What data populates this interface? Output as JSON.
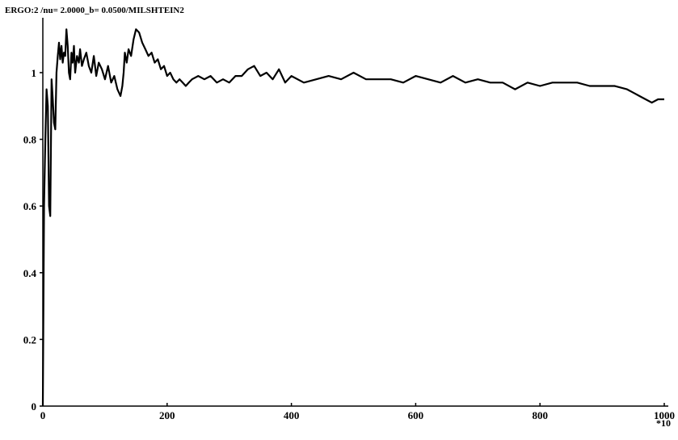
{
  "chart_data": {
    "type": "line",
    "title": "ERGO:2 /nu= 2.0000_b= 0.0500/MILSHTEIN2",
    "xlabel": "",
    "ylabel": "",
    "x_unit_label": "*10",
    "xlim": [
      0,
      1000
    ],
    "ylim": [
      0,
      1.15
    ],
    "x_ticks": [
      "0",
      "200",
      "400",
      "600",
      "800",
      "1000"
    ],
    "y_ticks": [
      "0",
      "0.2",
      "0.4",
      "0.6",
      "0.8",
      "1"
    ],
    "grid": false,
    "line_color": "#000000",
    "series": [
      {
        "x": [
          0,
          2,
          4,
          6,
          8,
          10,
          12,
          14,
          16,
          18,
          20,
          22,
          24,
          26,
          28,
          30,
          32,
          34,
          36,
          38,
          40,
          42,
          44,
          46,
          48,
          50,
          52,
          55,
          58,
          60,
          63,
          66,
          70,
          74,
          78,
          82,
          86,
          90,
          95,
          100,
          105,
          110,
          115,
          120,
          125,
          128,
          130,
          132,
          135,
          138,
          142,
          146,
          150,
          155,
          160,
          165,
          170,
          175,
          180,
          185,
          190,
          195,
          200,
          205,
          210,
          215,
          220,
          225,
          230,
          235,
          240,
          250,
          260,
          270,
          280,
          290,
          300,
          310,
          320,
          330,
          340,
          350,
          360,
          370,
          380,
          390,
          400,
          420,
          440,
          460,
          480,
          500,
          520,
          540,
          560,
          580,
          600,
          620,
          640,
          660,
          680,
          700,
          720,
          740,
          760,
          780,
          800,
          820,
          840,
          860,
          880,
          900,
          920,
          940,
          950,
          960,
          970,
          980,
          990,
          1000
        ],
        "y": [
          0.0,
          0.6,
          0.8,
          0.95,
          0.9,
          0.6,
          0.57,
          0.98,
          0.92,
          0.85,
          0.83,
          1.0,
          1.05,
          1.09,
          1.04,
          1.08,
          1.03,
          1.06,
          1.05,
          1.13,
          1.08,
          1.0,
          0.98,
          1.06,
          1.03,
          1.08,
          1.0,
          1.05,
          1.03,
          1.07,
          1.02,
          1.04,
          1.06,
          1.02,
          1.0,
          1.05,
          0.99,
          1.03,
          1.01,
          0.98,
          1.02,
          0.97,
          0.99,
          0.95,
          0.93,
          0.96,
          1.0,
          1.06,
          1.03,
          1.07,
          1.05,
          1.1,
          1.13,
          1.12,
          1.09,
          1.07,
          1.05,
          1.06,
          1.03,
          1.04,
          1.01,
          1.02,
          0.99,
          1.0,
          0.98,
          0.97,
          0.98,
          0.97,
          0.96,
          0.97,
          0.98,
          0.99,
          0.98,
          0.99,
          0.97,
          0.98,
          0.97,
          0.99,
          0.99,
          1.01,
          1.02,
          0.99,
          1.0,
          0.98,
          1.01,
          0.97,
          0.99,
          0.97,
          0.98,
          0.99,
          0.98,
          1.0,
          0.98,
          0.98,
          0.98,
          0.97,
          0.99,
          0.98,
          0.97,
          0.99,
          0.97,
          0.98,
          0.97,
          0.97,
          0.95,
          0.97,
          0.96,
          0.97,
          0.97,
          0.97,
          0.96,
          0.96,
          0.96,
          0.95,
          0.94,
          0.93,
          0.92,
          0.91,
          0.92,
          0.92
        ]
      }
    ]
  }
}
